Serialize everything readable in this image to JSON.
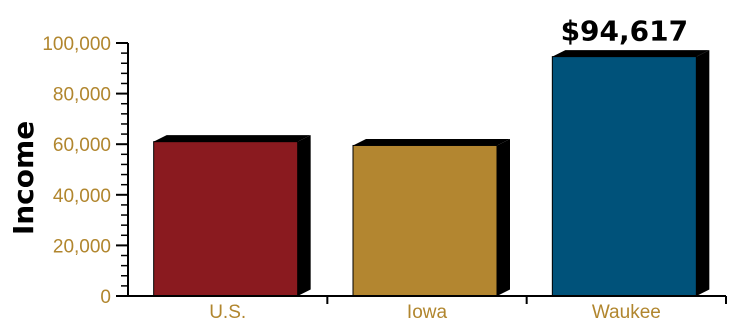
{
  "chart_data": {
    "type": "bar",
    "title": "",
    "xlabel": "",
    "ylabel": "Income",
    "categories": [
      "U.S.",
      "Iowa",
      "Waukee"
    ],
    "values": [
      61000,
      59500,
      94617
    ],
    "colors": [
      "#8a1a1f",
      "#b38630",
      "#00527a"
    ],
    "ylim": [
      0,
      100000
    ],
    "yticks": [
      0,
      20000,
      40000,
      60000,
      80000,
      100000
    ],
    "ytick_labels": [
      "0",
      "20,000",
      "40,000",
      "60,000",
      "80,000",
      "100,000"
    ],
    "data_labels": [
      {
        "category": "Waukee",
        "text": "$94,617"
      }
    ],
    "grid": false,
    "legend": "none",
    "axis_label_color": "#b1862e"
  }
}
